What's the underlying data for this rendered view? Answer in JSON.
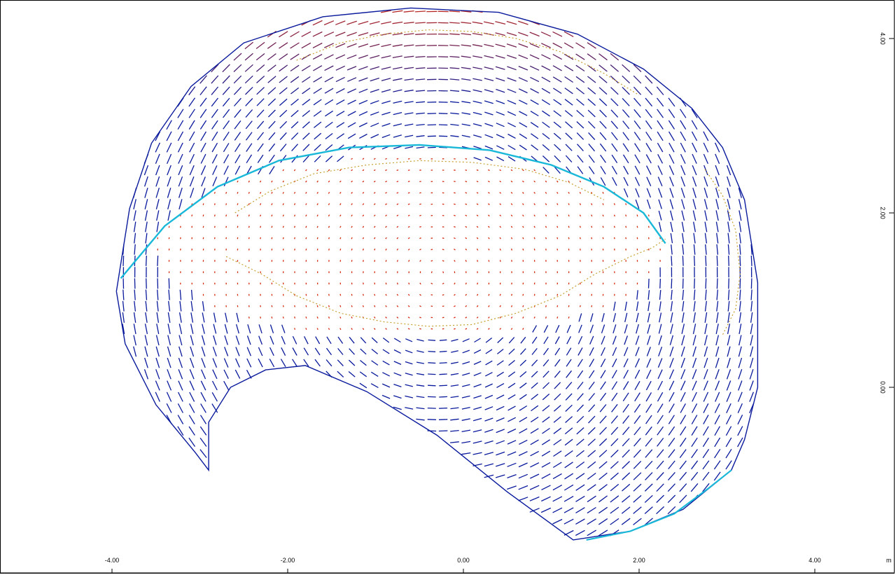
{
  "chart_data": {
    "type": "scatter",
    "subtype": "2D vector field plot (dashed direction markers)",
    "title": "",
    "xlabel": "",
    "ylabel": "",
    "unit_label": "m",
    "x_ticks": [
      "-4.00",
      "-2.00",
      "0.00",
      "2.00",
      "4.00"
    ],
    "y_ticks": [
      "4.00",
      "2.00",
      "0.00"
    ],
    "xlim": [
      -5.3,
      4.95
    ],
    "ylim": [
      -1.9,
      4.5
    ],
    "grid": false,
    "legend": "none",
    "colors": {
      "low": "#0a1a9c",
      "high": "#d42a10",
      "edge": "#19b8d8",
      "contour": "#c8a030"
    },
    "outline": {
      "description": "dome shaped field region",
      "x": [
        -3.95,
        -3.8,
        -3.55,
        -3.1,
        -2.5,
        -1.6,
        -0.6,
        0.4,
        1.3,
        2.05,
        2.6,
        2.95,
        3.2,
        3.35,
        3.35,
        3.2,
        3.05,
        2.5,
        1.9,
        1.25,
        0.5,
        -0.3,
        -1.1,
        -1.8,
        -2.25,
        -2.65,
        -2.9,
        -2.9,
        -3.05,
        -3.5,
        -3.85,
        -3.95
      ],
      "y": [
        1.1,
        2.05,
        2.8,
        3.45,
        3.95,
        4.25,
        4.35,
        4.3,
        4.05,
        3.65,
        3.2,
        2.75,
        2.15,
        1.2,
        0.0,
        -0.6,
        -0.95,
        -1.4,
        -1.65,
        -1.75,
        -1.2,
        -0.55,
        -0.05,
        0.25,
        0.2,
        0.0,
        -0.4,
        -0.95,
        -0.75,
        -0.2,
        0.5,
        1.1
      ]
    },
    "edge_curve": {
      "description": "cyan arc",
      "x": [
        -3.9,
        -3.4,
        -2.8,
        -2.1,
        -1.3,
        -0.5,
        0.3,
        1.0,
        1.6,
        2.05,
        2.3
      ],
      "y": [
        1.25,
        1.85,
        2.3,
        2.6,
        2.75,
        2.78,
        2.72,
        2.55,
        2.3,
        2.0,
        1.65
      ]
    },
    "lower_edge_curve": {
      "x": [
        1.4,
        1.9,
        2.4,
        2.8,
        3.05
      ],
      "y": [
        -1.75,
        -1.65,
        -1.45,
        -1.15,
        -0.95
      ]
    },
    "contours": [
      {
        "name": "",
        "x": [
          -2.7,
          -2.3,
          -1.9,
          -1.4,
          -0.9,
          -0.4,
          0.1,
          0.6,
          1.1,
          1.5,
          1.9,
          2.15,
          2.3
        ],
        "y": [
          1.5,
          1.3,
          1.05,
          0.85,
          0.75,
          0.7,
          0.72,
          0.85,
          1.05,
          1.3,
          1.5,
          1.6,
          1.7
        ]
      },
      {
        "name": "",
        "x": [
          -2.6,
          -2.2,
          -1.7,
          -1.1,
          -0.5,
          0.1,
          0.7,
          1.2,
          1.6
        ],
        "y": [
          2.0,
          2.25,
          2.45,
          2.55,
          2.6,
          2.58,
          2.5,
          2.35,
          2.15
        ]
      },
      {
        "name": "",
        "x": [
          -1.9,
          -1.4,
          -0.9,
          -0.4,
          0.1,
          0.6,
          1.1,
          1.6,
          2.0
        ],
        "y": [
          3.75,
          3.95,
          4.05,
          4.1,
          4.08,
          4.0,
          3.85,
          3.6,
          3.35
        ]
      },
      {
        "name": "",
        "x": [
          2.75,
          2.95,
          3.1,
          3.15,
          3.1,
          2.95
        ],
        "y": [
          2.5,
          2.2,
          1.8,
          1.3,
          0.9,
          0.6
        ]
      }
    ]
  }
}
